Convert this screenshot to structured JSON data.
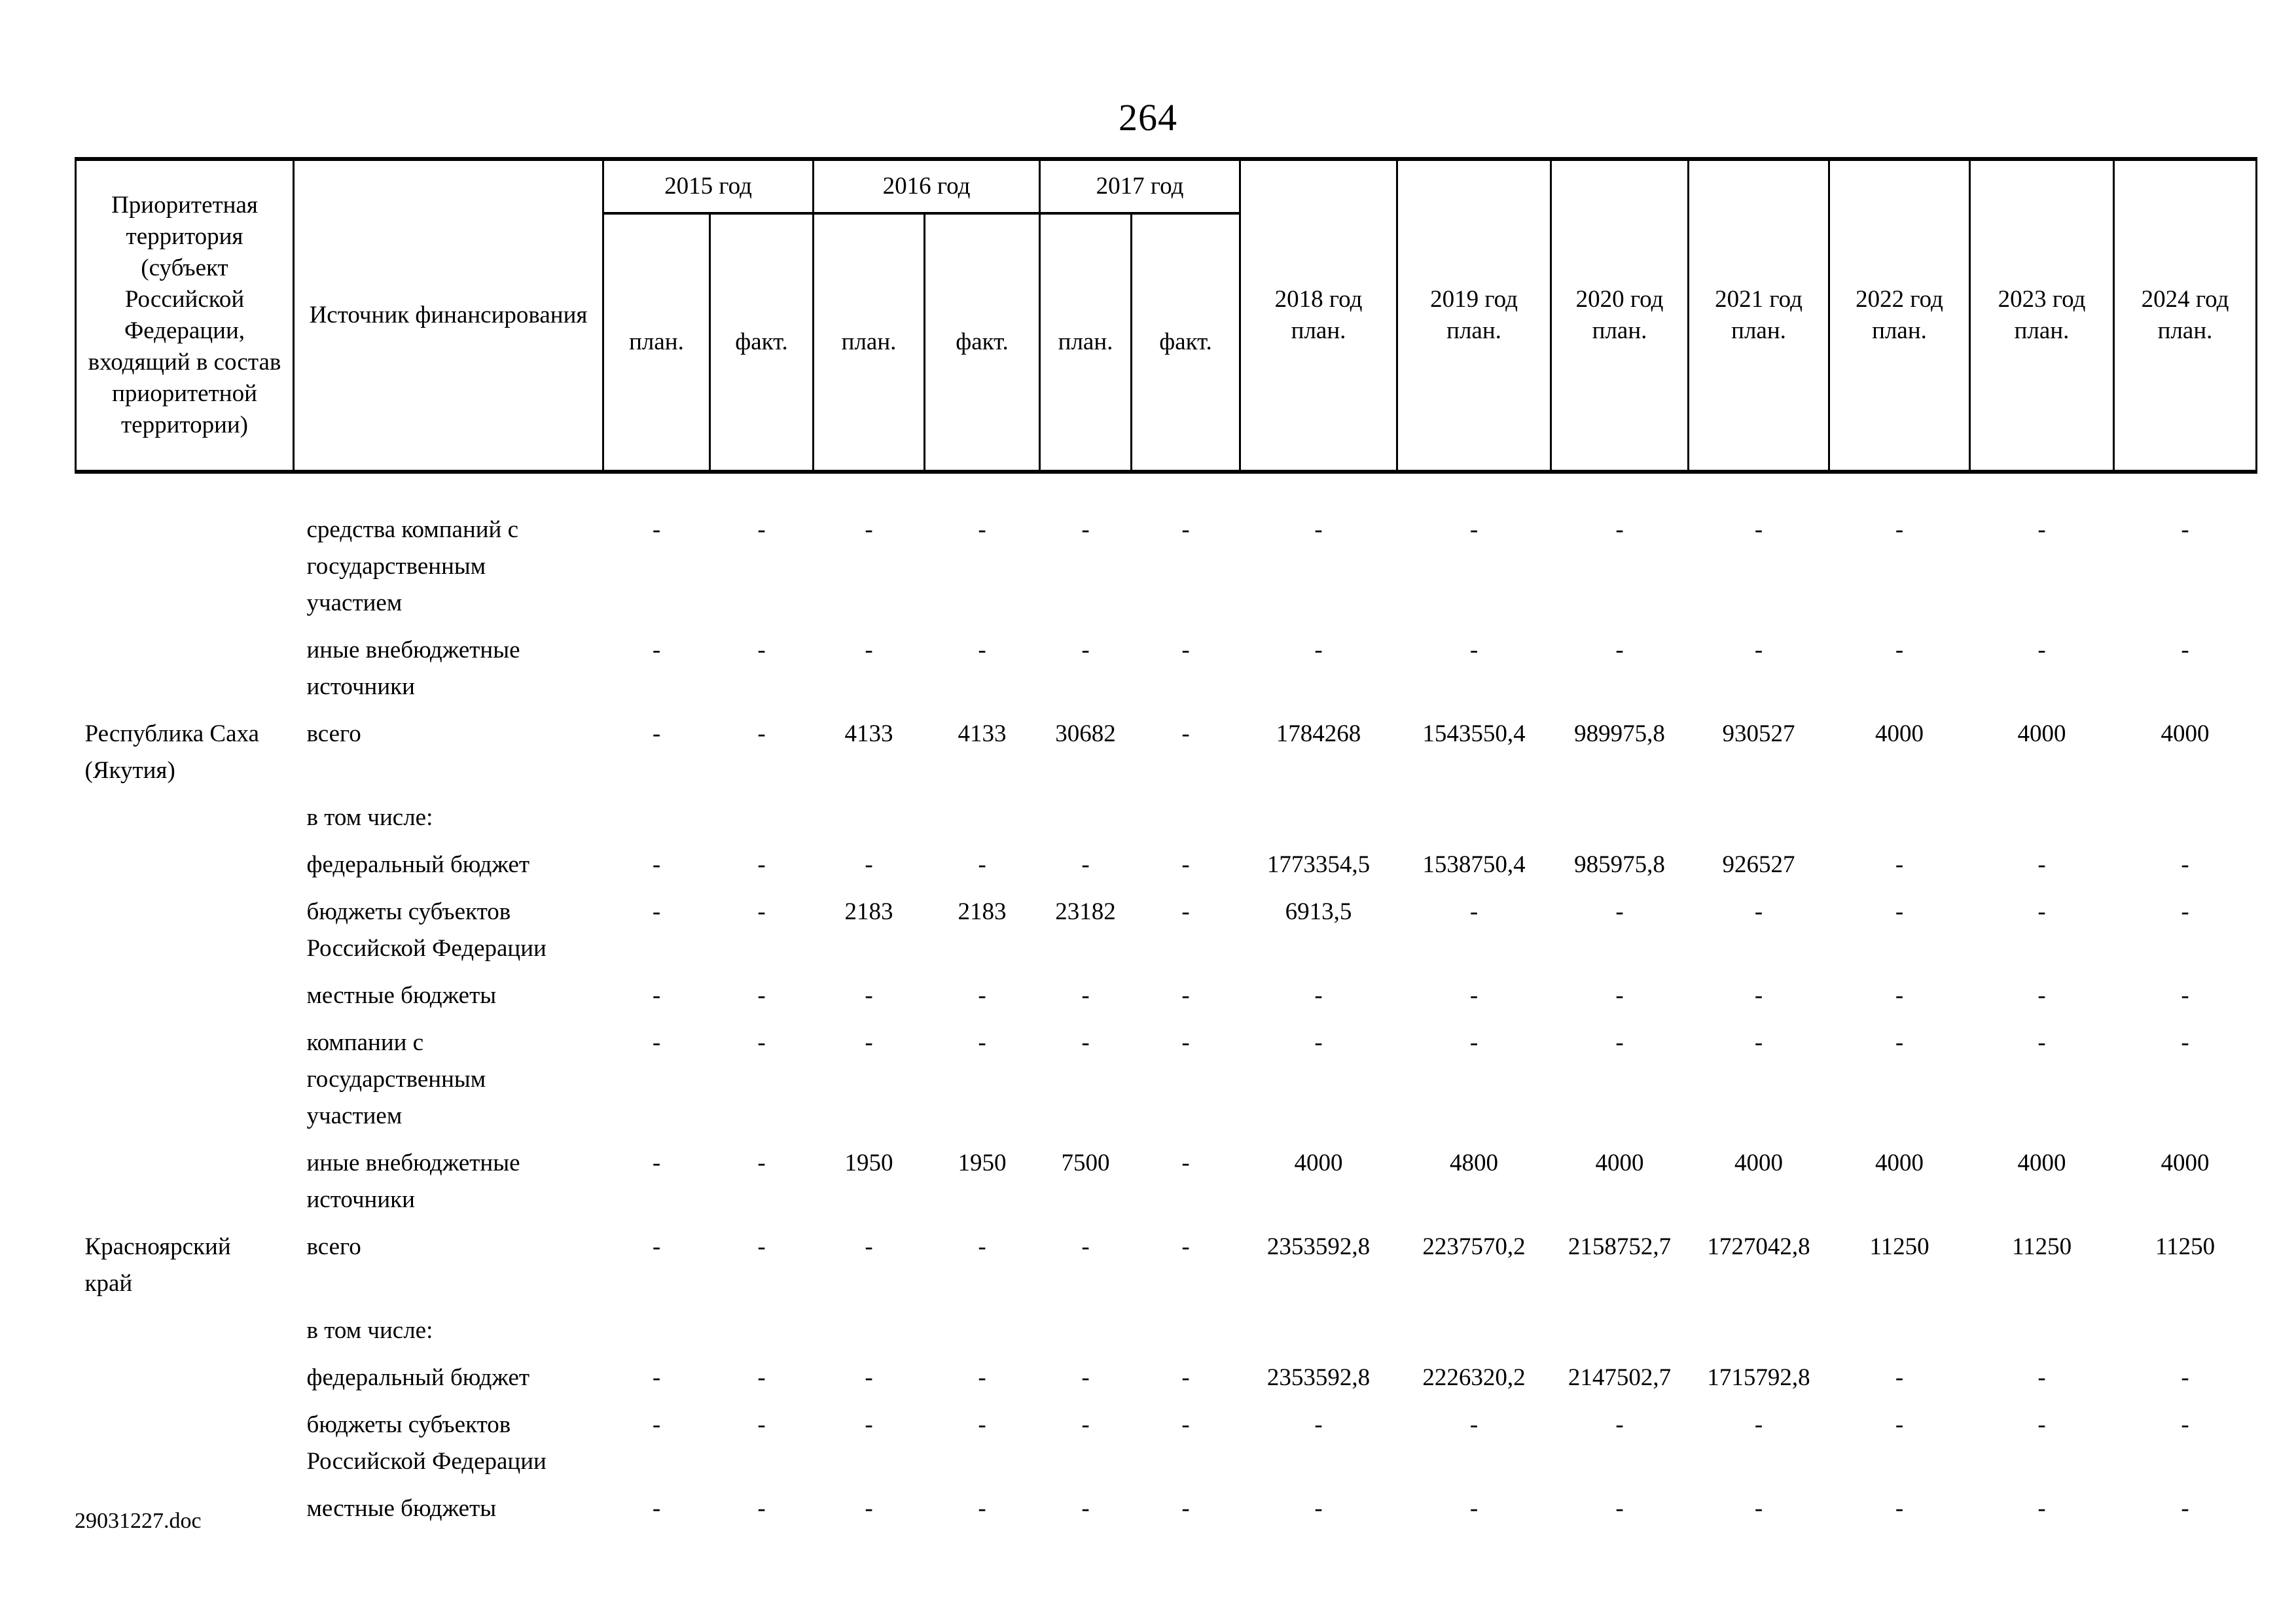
{
  "page": {
    "number": "264",
    "footer": "29031227.doc"
  },
  "table": {
    "header": {
      "territory_label": "Приоритетная территория (субъект Российской Федерации, входящий в состав приоритетной территории)",
      "source_label": "Источник финансирования",
      "year_groups": [
        {
          "label": "2015 год",
          "sub": [
            "план.",
            "факт."
          ]
        },
        {
          "label": "2016 год",
          "sub": [
            "план.",
            "факт."
          ]
        },
        {
          "label": "2017 год",
          "sub": [
            "план.",
            "факт."
          ]
        }
      ],
      "plan_years": [
        {
          "label": "2018 год",
          "sub": "план."
        },
        {
          "label": "2019 год",
          "sub": "план."
        },
        {
          "label": "2020 год",
          "sub": "план."
        },
        {
          "label": "2021 год",
          "sub": "план."
        },
        {
          "label": "2022 год",
          "sub": "план."
        },
        {
          "label": "2023 год",
          "sub": "план."
        },
        {
          "label": "2024 год",
          "sub": "план."
        }
      ]
    },
    "rows": [
      {
        "territory": "",
        "source": "средства компаний с государственным участием",
        "values": [
          "-",
          "-",
          "-",
          "-",
          "-",
          "-",
          "-",
          "-",
          "-",
          "-",
          "-",
          "-",
          "-"
        ]
      },
      {
        "territory": "",
        "source": "иные внебюджетные источники",
        "values": [
          "-",
          "-",
          "-",
          "-",
          "-",
          "-",
          "-",
          "-",
          "-",
          "-",
          "-",
          "-",
          "-"
        ]
      },
      {
        "territory": "Республика Саха (Якутия)",
        "source": "всего",
        "values": [
          "-",
          "-",
          "4133",
          "4133",
          "30682",
          "-",
          "1784268",
          "1543550,4",
          "989975,8",
          "930527",
          "4000",
          "4000",
          "4000"
        ]
      },
      {
        "territory": "",
        "source": "в том числе:",
        "values": [
          "",
          "",
          "",
          "",
          "",
          "",
          "",
          "",
          "",
          "",
          "",
          "",
          ""
        ]
      },
      {
        "territory": "",
        "source": "федеральный бюджет",
        "values": [
          "-",
          "-",
          "-",
          "-",
          "-",
          "-",
          "1773354,5",
          "1538750,4",
          "985975,8",
          "926527",
          "-",
          "-",
          "-"
        ]
      },
      {
        "territory": "",
        "source": "бюджеты субъектов Российской Федерации",
        "values": [
          "-",
          "-",
          "2183",
          "2183",
          "23182",
          "-",
          "6913,5",
          "-",
          "-",
          "-",
          "-",
          "-",
          "-"
        ]
      },
      {
        "territory": "",
        "source": "местные бюджеты",
        "values": [
          "-",
          "-",
          "-",
          "-",
          "-",
          "-",
          "-",
          "-",
          "-",
          "-",
          "-",
          "-",
          "-"
        ]
      },
      {
        "territory": "",
        "source": "компании с государственным участием",
        "values": [
          "-",
          "-",
          "-",
          "-",
          "-",
          "-",
          "-",
          "-",
          "-",
          "-",
          "-",
          "-",
          "-"
        ]
      },
      {
        "territory": "",
        "source": "иные внебюджетные источники",
        "values": [
          "-",
          "-",
          "1950",
          "1950",
          "7500",
          "-",
          "4000",
          "4800",
          "4000",
          "4000",
          "4000",
          "4000",
          "4000"
        ]
      },
      {
        "territory": "Красноярский край",
        "source": "всего",
        "values": [
          "-",
          "-",
          "-",
          "-",
          "-",
          "-",
          "2353592,8",
          "2237570,2",
          "2158752,7",
          "1727042,8",
          "11250",
          "11250",
          "11250"
        ]
      },
      {
        "territory": "",
        "source": "в том числе:",
        "values": [
          "",
          "",
          "",
          "",
          "",
          "",
          "",
          "",
          "",
          "",
          "",
          "",
          ""
        ]
      },
      {
        "territory": "",
        "source": "федеральный бюджет",
        "values": [
          "-",
          "-",
          "-",
          "-",
          "-",
          "-",
          "2353592,8",
          "2226320,2",
          "2147502,7",
          "1715792,8",
          "-",
          "-",
          "-"
        ]
      },
      {
        "territory": "",
        "source": "бюджеты субъектов Российской Федерации",
        "values": [
          "-",
          "-",
          "-",
          "-",
          "-",
          "-",
          "-",
          "-",
          "-",
          "-",
          "-",
          "-",
          "-"
        ]
      },
      {
        "territory": "",
        "source": "местные бюджеты",
        "values": [
          "-",
          "-",
          "-",
          "-",
          "-",
          "-",
          "-",
          "-",
          "-",
          "-",
          "-",
          "-",
          "-"
        ]
      }
    ]
  }
}
